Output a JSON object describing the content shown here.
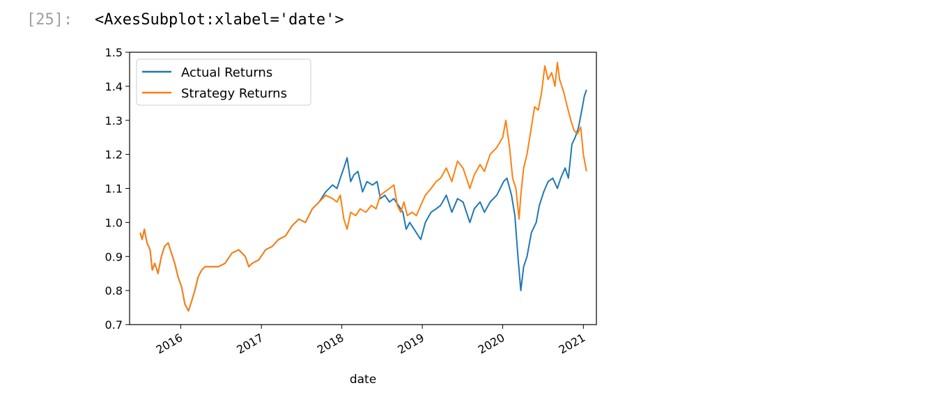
{
  "cell": {
    "prompt": "[25]:",
    "output_text": "<AxesSubplot:xlabel='date'>"
  },
  "chart_data": {
    "type": "line",
    "title": "",
    "xlabel": "date",
    "ylabel": "",
    "xlim": [
      "2015-05-14",
      "2021-03-01"
    ],
    "ylim": [
      0.7,
      1.5
    ],
    "y_ticks": [
      0.7,
      0.8,
      0.9,
      1.0,
      1.1,
      1.2,
      1.3,
      1.4,
      1.5
    ],
    "x_ticks": [
      "2016",
      "2017",
      "2018",
      "2019",
      "2020",
      "2021"
    ],
    "x_tick_dates": [
      "2016-01-01",
      "2017-01-01",
      "2018-01-01",
      "2019-01-01",
      "2020-01-01",
      "2021-01-01"
    ],
    "legend_position": "top-left",
    "grid": false,
    "series": [
      {
        "name": "Actual Returns",
        "color": "#1f77b4",
        "points": [
          [
            "2015-07-01",
            0.97
          ],
          [
            "2015-07-10",
            0.95
          ],
          [
            "2015-07-20",
            0.98
          ],
          [
            "2015-08-01",
            0.94
          ],
          [
            "2015-08-15",
            0.92
          ],
          [
            "2015-08-25",
            0.86
          ],
          [
            "2015-09-05",
            0.88
          ],
          [
            "2015-09-20",
            0.85
          ],
          [
            "2015-10-05",
            0.9
          ],
          [
            "2015-10-20",
            0.93
          ],
          [
            "2015-11-05",
            0.94
          ],
          [
            "2015-11-20",
            0.91
          ],
          [
            "2015-12-05",
            0.88
          ],
          [
            "2015-12-20",
            0.84
          ],
          [
            "2016-01-05",
            0.81
          ],
          [
            "2016-01-20",
            0.76
          ],
          [
            "2016-02-05",
            0.74
          ],
          [
            "2016-02-20",
            0.77
          ],
          [
            "2016-03-05",
            0.8
          ],
          [
            "2016-03-20",
            0.84
          ],
          [
            "2016-04-05",
            0.86
          ],
          [
            "2016-04-20",
            0.87
          ],
          [
            "2016-05-20",
            0.87
          ],
          [
            "2016-06-20",
            0.87
          ],
          [
            "2016-07-20",
            0.88
          ],
          [
            "2016-08-20",
            0.91
          ],
          [
            "2016-09-20",
            0.92
          ],
          [
            "2016-10-20",
            0.9
          ],
          [
            "2016-11-05",
            0.87
          ],
          [
            "2016-11-20",
            0.88
          ],
          [
            "2016-12-20",
            0.89
          ],
          [
            "2017-01-20",
            0.92
          ],
          [
            "2017-02-20",
            0.93
          ],
          [
            "2017-03-20",
            0.95
          ],
          [
            "2017-04-20",
            0.96
          ],
          [
            "2017-05-20",
            0.99
          ],
          [
            "2017-06-20",
            1.01
          ],
          [
            "2017-07-20",
            1.0
          ],
          [
            "2017-08-20",
            1.04
          ],
          [
            "2017-09-20",
            1.06
          ],
          [
            "2017-10-20",
            1.09
          ],
          [
            "2017-11-20",
            1.11
          ],
          [
            "2017-12-10",
            1.1
          ],
          [
            "2017-12-25",
            1.13
          ],
          [
            "2018-01-10",
            1.16
          ],
          [
            "2018-01-25",
            1.19
          ],
          [
            "2018-02-10",
            1.12
          ],
          [
            "2018-02-25",
            1.14
          ],
          [
            "2018-03-15",
            1.15
          ],
          [
            "2018-04-05",
            1.09
          ],
          [
            "2018-04-25",
            1.12
          ],
          [
            "2018-05-20",
            1.11
          ],
          [
            "2018-06-10",
            1.12
          ],
          [
            "2018-06-25",
            1.07
          ],
          [
            "2018-07-15",
            1.08
          ],
          [
            "2018-08-05",
            1.06
          ],
          [
            "2018-08-25",
            1.07
          ],
          [
            "2018-09-15",
            1.05
          ],
          [
            "2018-10-05",
            1.03
          ],
          [
            "2018-10-20",
            0.98
          ],
          [
            "2018-11-05",
            1.0
          ],
          [
            "2018-11-25",
            0.98
          ],
          [
            "2018-12-15",
            0.96
          ],
          [
            "2018-12-25",
            0.95
          ],
          [
            "2019-01-15",
            1.0
          ],
          [
            "2019-02-10",
            1.03
          ],
          [
            "2019-03-05",
            1.04
          ],
          [
            "2019-03-25",
            1.05
          ],
          [
            "2019-04-20",
            1.08
          ],
          [
            "2019-05-15",
            1.03
          ],
          [
            "2019-06-10",
            1.07
          ],
          [
            "2019-07-05",
            1.06
          ],
          [
            "2019-08-05",
            1.0
          ],
          [
            "2019-08-25",
            1.04
          ],
          [
            "2019-09-20",
            1.06
          ],
          [
            "2019-10-10",
            1.03
          ],
          [
            "2019-11-05",
            1.06
          ],
          [
            "2019-12-05",
            1.08
          ],
          [
            "2020-01-05",
            1.12
          ],
          [
            "2020-01-20",
            1.13
          ],
          [
            "2020-02-10",
            1.08
          ],
          [
            "2020-02-25",
            1.02
          ],
          [
            "2020-03-10",
            0.9
          ],
          [
            "2020-03-23",
            0.8
          ],
          [
            "2020-04-05",
            0.87
          ],
          [
            "2020-04-20",
            0.9
          ],
          [
            "2020-05-10",
            0.97
          ],
          [
            "2020-06-01",
            1.0
          ],
          [
            "2020-06-15",
            1.05
          ],
          [
            "2020-07-05",
            1.09
          ],
          [
            "2020-07-25",
            1.12
          ],
          [
            "2020-08-15",
            1.13
          ],
          [
            "2020-09-05",
            1.1
          ],
          [
            "2020-09-20",
            1.13
          ],
          [
            "2020-10-10",
            1.16
          ],
          [
            "2020-10-25",
            1.13
          ],
          [
            "2020-11-10",
            1.23
          ],
          [
            "2020-11-25",
            1.25
          ],
          [
            "2020-12-10",
            1.28
          ],
          [
            "2020-12-25",
            1.33
          ],
          [
            "2021-01-05",
            1.37
          ],
          [
            "2021-01-15",
            1.39
          ]
        ]
      },
      {
        "name": "Strategy Returns",
        "color": "#ff7f0e",
        "points": [
          [
            "2015-07-01",
            0.97
          ],
          [
            "2015-07-10",
            0.95
          ],
          [
            "2015-07-20",
            0.98
          ],
          [
            "2015-08-01",
            0.94
          ],
          [
            "2015-08-15",
            0.92
          ],
          [
            "2015-08-25",
            0.86
          ],
          [
            "2015-09-05",
            0.88
          ],
          [
            "2015-09-20",
            0.85
          ],
          [
            "2015-10-05",
            0.9
          ],
          [
            "2015-10-20",
            0.93
          ],
          [
            "2015-11-05",
            0.94
          ],
          [
            "2015-11-20",
            0.91
          ],
          [
            "2015-12-05",
            0.88
          ],
          [
            "2015-12-20",
            0.84
          ],
          [
            "2016-01-05",
            0.81
          ],
          [
            "2016-01-20",
            0.76
          ],
          [
            "2016-02-05",
            0.74
          ],
          [
            "2016-02-20",
            0.77
          ],
          [
            "2016-03-05",
            0.8
          ],
          [
            "2016-03-20",
            0.84
          ],
          [
            "2016-04-05",
            0.86
          ],
          [
            "2016-04-20",
            0.87
          ],
          [
            "2016-05-20",
            0.87
          ],
          [
            "2016-06-20",
            0.87
          ],
          [
            "2016-07-20",
            0.88
          ],
          [
            "2016-08-20",
            0.91
          ],
          [
            "2016-09-20",
            0.92
          ],
          [
            "2016-10-20",
            0.9
          ],
          [
            "2016-11-05",
            0.87
          ],
          [
            "2016-11-20",
            0.88
          ],
          [
            "2016-12-20",
            0.89
          ],
          [
            "2017-01-20",
            0.92
          ],
          [
            "2017-02-20",
            0.93
          ],
          [
            "2017-03-20",
            0.95
          ],
          [
            "2017-04-20",
            0.96
          ],
          [
            "2017-05-20",
            0.99
          ],
          [
            "2017-06-20",
            1.01
          ],
          [
            "2017-07-20",
            1.0
          ],
          [
            "2017-08-20",
            1.04
          ],
          [
            "2017-09-20",
            1.06
          ],
          [
            "2017-10-20",
            1.08
          ],
          [
            "2017-11-20",
            1.07
          ],
          [
            "2017-12-10",
            1.06
          ],
          [
            "2017-12-25",
            1.08
          ],
          [
            "2018-01-10",
            1.01
          ],
          [
            "2018-01-25",
            0.98
          ],
          [
            "2018-02-10",
            1.03
          ],
          [
            "2018-03-05",
            1.02
          ],
          [
            "2018-03-25",
            1.04
          ],
          [
            "2018-04-20",
            1.03
          ],
          [
            "2018-05-15",
            1.05
          ],
          [
            "2018-06-05",
            1.04
          ],
          [
            "2018-06-25",
            1.08
          ],
          [
            "2018-07-15",
            1.09
          ],
          [
            "2018-08-05",
            1.1
          ],
          [
            "2018-08-25",
            1.11
          ],
          [
            "2018-09-10",
            1.05
          ],
          [
            "2018-09-25",
            1.03
          ],
          [
            "2018-10-10",
            1.06
          ],
          [
            "2018-10-25",
            1.02
          ],
          [
            "2018-11-15",
            1.03
          ],
          [
            "2018-12-05",
            1.02
          ],
          [
            "2018-12-25",
            1.05
          ],
          [
            "2019-01-15",
            1.08
          ],
          [
            "2019-02-10",
            1.1
          ],
          [
            "2019-03-05",
            1.12
          ],
          [
            "2019-03-25",
            1.13
          ],
          [
            "2019-04-20",
            1.16
          ],
          [
            "2019-05-15",
            1.12
          ],
          [
            "2019-06-10",
            1.18
          ],
          [
            "2019-07-05",
            1.16
          ],
          [
            "2019-08-05",
            1.1
          ],
          [
            "2019-08-25",
            1.14
          ],
          [
            "2019-09-20",
            1.17
          ],
          [
            "2019-10-10",
            1.15
          ],
          [
            "2019-11-05",
            1.2
          ],
          [
            "2019-12-05",
            1.22
          ],
          [
            "2020-01-01",
            1.25
          ],
          [
            "2020-01-15",
            1.3
          ],
          [
            "2020-02-01",
            1.22
          ],
          [
            "2020-02-15",
            1.13
          ],
          [
            "2020-03-01",
            1.1
          ],
          [
            "2020-03-15",
            1.01
          ],
          [
            "2020-03-23",
            1.08
          ],
          [
            "2020-04-05",
            1.16
          ],
          [
            "2020-04-20",
            1.2
          ],
          [
            "2020-05-10",
            1.28
          ],
          [
            "2020-05-25",
            1.34
          ],
          [
            "2020-06-10",
            1.33
          ],
          [
            "2020-06-25",
            1.38
          ],
          [
            "2020-07-10",
            1.46
          ],
          [
            "2020-07-25",
            1.42
          ],
          [
            "2020-08-10",
            1.44
          ],
          [
            "2020-08-25",
            1.4
          ],
          [
            "2020-09-05",
            1.47
          ],
          [
            "2020-09-15",
            1.42
          ],
          [
            "2020-10-05",
            1.38
          ],
          [
            "2020-10-20",
            1.34
          ],
          [
            "2020-11-05",
            1.3
          ],
          [
            "2020-11-20",
            1.27
          ],
          [
            "2020-12-05",
            1.26
          ],
          [
            "2020-12-20",
            1.28
          ],
          [
            "2021-01-01",
            1.2
          ],
          [
            "2021-01-15",
            1.15
          ]
        ]
      }
    ]
  }
}
